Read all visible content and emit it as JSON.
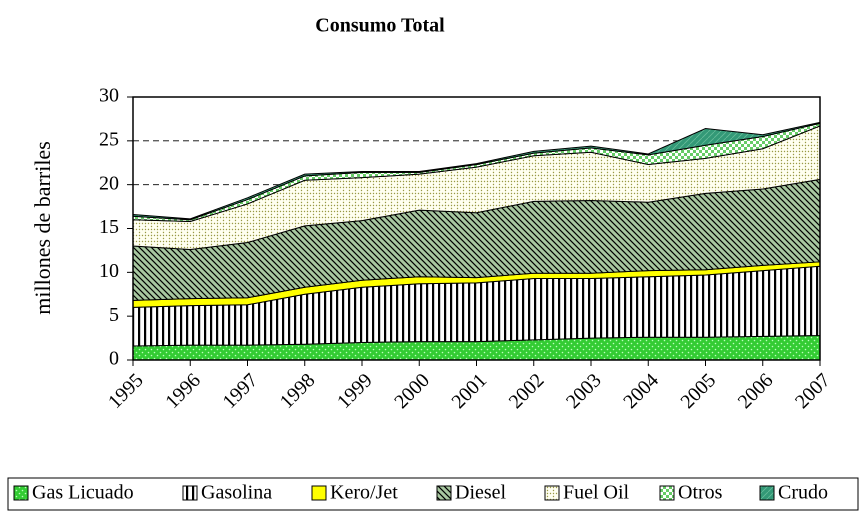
{
  "chart_data": {
    "type": "stacked_area",
    "title": "Consumo Total",
    "y_label": "millones de barriles",
    "x": [
      1995,
      1996,
      1997,
      1998,
      1999,
      2000,
      2001,
      2002,
      2003,
      2004,
      2005,
      2006,
      2007
    ],
    "xticks": [
      1995,
      1996,
      1997,
      1998,
      1999,
      2000,
      2001,
      2002,
      2003,
      2004,
      2005,
      2006,
      2007
    ],
    "xlim": [
      1995,
      2007
    ],
    "ylim": [
      0,
      30
    ],
    "yticks": [
      0,
      5,
      10,
      15,
      20,
      25,
      30
    ],
    "grid": true,
    "legend": "bottom",
    "series": [
      {
        "name": "Gas Licuado",
        "color": "#33cc33",
        "values": [
          1.6,
          1.7,
          1.7,
          1.8,
          2.0,
          2.1,
          2.1,
          2.3,
          2.5,
          2.6,
          2.6,
          2.7,
          2.8
        ]
      },
      {
        "name": "Gasolina",
        "color": "#ffffff",
        "values": [
          4.4,
          4.5,
          4.6,
          5.7,
          6.3,
          6.6,
          6.7,
          7.0,
          6.8,
          6.9,
          7.1,
          7.5,
          7.9
        ]
      },
      {
        "name": "Kero/Jet",
        "color": "#ffff00",
        "values": [
          0.8,
          0.8,
          0.8,
          0.8,
          0.8,
          0.8,
          0.6,
          0.6,
          0.6,
          0.7,
          0.6,
          0.6,
          0.5
        ]
      },
      {
        "name": "Diesel",
        "color": "#a8c8a0",
        "values": [
          6.2,
          5.6,
          6.3,
          7.0,
          6.8,
          7.6,
          7.4,
          8.2,
          8.3,
          7.8,
          8.7,
          8.7,
          9.4
        ]
      },
      {
        "name": "Fuel Oil",
        "color": "#fffff0",
        "values": [
          3.0,
          3.2,
          4.4,
          5.2,
          4.9,
          4.1,
          5.2,
          5.2,
          5.5,
          4.3,
          4.0,
          4.6,
          6.1
        ]
      },
      {
        "name": "Otros",
        "color": "#66cc66",
        "values": [
          0.4,
          0.2,
          0.5,
          0.5,
          0.6,
          0.2,
          0.3,
          0.3,
          0.5,
          1.1,
          1.5,
          1.4,
          0.3
        ]
      },
      {
        "name": "Crudo",
        "color": "#339977",
        "values": [
          0.2,
          0.1,
          0.2,
          0.2,
          0.1,
          0.1,
          0.1,
          0.2,
          0.2,
          0.1,
          1.9,
          0.2,
          0.1
        ]
      }
    ]
  }
}
